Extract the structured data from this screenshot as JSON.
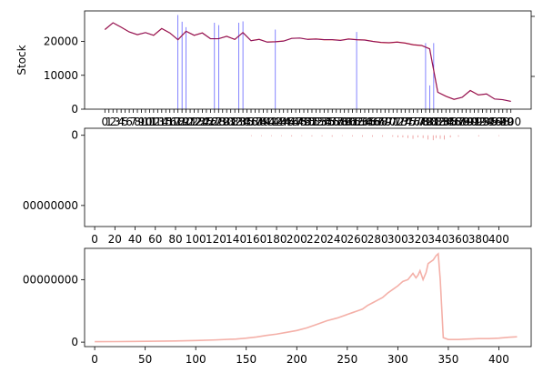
{
  "chart_data": [
    {
      "type": "line",
      "panel": "top",
      "ylabel": "Stock",
      "xlabel": "",
      "title": "",
      "grid": false,
      "yticks": [
        0,
        10000,
        20000
      ],
      "ylim": [
        0,
        29000
      ],
      "x_ticks_overlapping_note": "",
      "xticks": [
        "0",
        "1",
        "2",
        "3",
        "4",
        "5",
        "6",
        "7",
        "8",
        "9",
        "10",
        "11",
        "12",
        "13",
        "14",
        "15",
        "16",
        "17",
        "18",
        "19",
        "20",
        "21",
        "22",
        "23",
        "24",
        "25",
        "26",
        "27",
        "28",
        "29",
        "30",
        "31",
        "32",
        "33",
        "34",
        "35",
        "36",
        "37",
        "38",
        "39",
        "40",
        "41",
        "42",
        "43",
        "44",
        "45",
        "46",
        "47",
        "48",
        "49",
        "50",
        "51",
        "52",
        "53",
        "54",
        "55",
        "56",
        "57",
        "58",
        "59",
        "60",
        "61",
        "62",
        "63",
        "64",
        "65",
        "66",
        "67",
        "68",
        "69",
        "70",
        "71",
        "72",
        "73",
        "74",
        "75",
        "76",
        "77",
        "78",
        "79",
        "80",
        "81",
        "82",
        "83",
        "84",
        "85",
        "86",
        "87",
        "88",
        "89",
        "90",
        "91",
        "92",
        "93",
        "94",
        "95",
        "96",
        "97",
        "98",
        "99",
        "100"
      ],
      "xlim": [
        -5,
        105
      ],
      "series": [
        {
          "color": "#cc0000",
          "x": [
            0,
            2,
            4,
            6,
            8,
            10,
            12,
            14,
            16,
            18,
            20,
            22,
            24,
            26,
            28,
            30,
            32,
            34,
            36,
            38,
            40,
            42,
            44,
            46,
            48,
            50,
            52,
            54,
            56,
            58,
            60,
            62,
            64,
            66,
            68,
            70,
            72,
            74,
            76,
            78,
            80,
            82,
            84,
            86,
            88,
            90,
            92,
            94,
            96,
            98,
            100
          ],
          "values": [
            23500,
            25500,
            24200,
            22800,
            22000,
            22600,
            21800,
            23800,
            22500,
            20500,
            23000,
            21800,
            22500,
            20800,
            20800,
            21500,
            20600,
            22600,
            20200,
            20600,
            19800,
            19900,
            20100,
            20900,
            21000,
            20600,
            20700,
            20500,
            20500,
            20300,
            20700,
            20500,
            20400,
            20000,
            19700,
            19600,
            19800,
            19500,
            19000,
            18800,
            17800,
            5000,
            3800,
            2900,
            3500,
            5500,
            4200,
            4500,
            3000,
            2800,
            2300
          ]
        }
      ],
      "overlay_spikes": {
        "color": "#3333ff",
        "x": [
          18,
          19,
          20,
          27,
          28,
          33,
          34,
          42,
          62,
          79,
          80,
          81
        ],
        "values": [
          27800,
          25800,
          24200,
          25500,
          24800,
          25500,
          25900,
          23500,
          22800,
          19500,
          7000,
          19500
        ]
      },
      "right_axis": {
        "ticks": [
          "",
          ""
        ]
      }
    },
    {
      "type": "bar",
      "panel": "middle",
      "yticks": [
        "0",
        "00000000"
      ],
      "ylim": [
        -1.3,
        0.1
      ],
      "xticks": [
        "0",
        "20",
        "40",
        "60",
        "80",
        "100",
        "120",
        "140",
        "160",
        "180",
        "200",
        "220",
        "240",
        "260",
        "280",
        "300",
        "320",
        "340",
        "360",
        "380",
        "400"
      ],
      "xlim": [
        -10,
        432
      ],
      "series": [
        {
          "color": "#e88080",
          "x": [
            155,
            165,
            175,
            185,
            195,
            205,
            215,
            225,
            235,
            245,
            255,
            265,
            275,
            285,
            295,
            300,
            305,
            310,
            315,
            320,
            325,
            330,
            335,
            338,
            342,
            346,
            352,
            360,
            380,
            400
          ],
          "values": [
            -0.01,
            -0.01,
            -0.01,
            -0.01,
            -0.015,
            -0.01,
            -0.015,
            -0.015,
            -0.02,
            -0.01,
            -0.015,
            -0.02,
            -0.02,
            -0.02,
            -0.02,
            -0.03,
            -0.03,
            -0.04,
            -0.05,
            -0.03,
            -0.04,
            -0.06,
            -0.07,
            -0.04,
            -0.05,
            -0.06,
            -0.03,
            -0.02,
            -0.015,
            -0.01
          ]
        }
      ]
    },
    {
      "type": "line",
      "panel": "bottom",
      "yticks": [
        "0",
        "00000000"
      ],
      "ylim": [
        -0.05,
        1.05
      ],
      "xticks": [
        "0",
        "50",
        "100",
        "150",
        "200",
        "250",
        "300",
        "350",
        "400"
      ],
      "xlim": [
        -10,
        432
      ],
      "series": [
        {
          "color": "#f4b0a8",
          "x": [
            0,
            20,
            40,
            60,
            80,
            100,
            120,
            140,
            150,
            160,
            170,
            180,
            190,
            200,
            210,
            220,
            230,
            240,
            250,
            255,
            260,
            265,
            270,
            275,
            280,
            285,
            290,
            295,
            300,
            305,
            310,
            315,
            318,
            320,
            322,
            325,
            328,
            330,
            335,
            338,
            340,
            342,
            345,
            350,
            360,
            370,
            380,
            390,
            400,
            410,
            418
          ],
          "values": [
            0.005,
            0.006,
            0.008,
            0.01,
            0.013,
            0.018,
            0.025,
            0.035,
            0.045,
            0.058,
            0.075,
            0.09,
            0.11,
            0.13,
            0.16,
            0.2,
            0.24,
            0.27,
            0.31,
            0.33,
            0.35,
            0.37,
            0.41,
            0.44,
            0.47,
            0.5,
            0.55,
            0.59,
            0.63,
            0.68,
            0.7,
            0.77,
            0.72,
            0.75,
            0.8,
            0.7,
            0.78,
            0.88,
            0.92,
            0.97,
            0.99,
            0.7,
            0.05,
            0.03,
            0.03,
            0.035,
            0.04,
            0.04,
            0.045,
            0.055,
            0.06
          ]
        }
      ]
    }
  ]
}
